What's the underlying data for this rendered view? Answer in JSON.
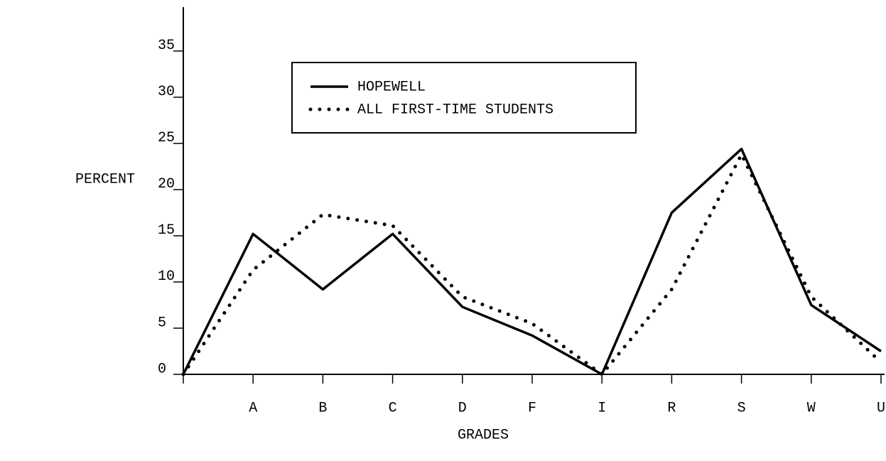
{
  "chart_data": {
    "type": "line",
    "x_label": "GRADES",
    "y_label": "PERCENT",
    "categories": [
      null,
      "A",
      "B",
      "C",
      "D",
      "F",
      "I",
      "R",
      "S",
      "W",
      "U"
    ],
    "series": [
      {
        "name": "HOPEWELL",
        "color": "#000000",
        "line_style": "solid",
        "values": [
          0,
          15.2,
          9.2,
          15.2,
          7.3,
          4.2,
          0,
          17.5,
          24.4,
          7.5,
          2.5
        ]
      },
      {
        "name": "ALL FIRST-TIME STUDENTS",
        "color": "#000000",
        "line_style": "dotted",
        "values": [
          0,
          11.3,
          17.3,
          16.1,
          8.4,
          5.5,
          0,
          9.2,
          23.8,
          8.4,
          1.3
        ]
      }
    ],
    "ylim": [
      0,
      39.6
    ],
    "yticks": [
      0,
      5,
      10,
      15,
      20,
      25,
      30,
      35
    ],
    "legend": "top-left",
    "grid": false
  }
}
